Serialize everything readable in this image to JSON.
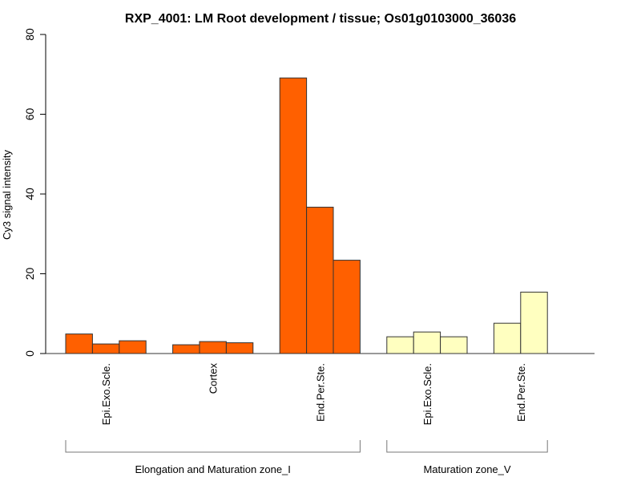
{
  "chart_data": {
    "type": "bar",
    "title": "RXP_4001: LM Root development / tissue; Os01g0103000_36036",
    "xlabel": "",
    "ylabel": "Cy3 signal intensity",
    "ylim": [
      0,
      80
    ],
    "yticks": [
      "0",
      "20",
      "40",
      "60",
      "80"
    ],
    "grid": false,
    "legend": "none",
    "groups": [
      {
        "label": "Elongation and Maturation zone_I",
        "color": "#FF6000",
        "categories": [
          {
            "label": "Epi.Exo.Scle.",
            "values": [
              4.9,
              2.4,
              3.2
            ]
          },
          {
            "label": "Cortex",
            "values": [
              2.2,
              3.0,
              2.7
            ]
          },
          {
            "label": "End.Per.Ste.",
            "values": [
              69.1,
              36.7,
              23.4
            ]
          }
        ]
      },
      {
        "label": "Maturation zone_V",
        "color": "#FFFFC0",
        "categories": [
          {
            "label": "Epi.Exo.Scle.",
            "values": [
              4.2,
              5.4,
              4.2
            ]
          },
          {
            "label": "End.Per.Ste.",
            "values": [
              7.6,
              15.4
            ]
          }
        ]
      }
    ]
  }
}
